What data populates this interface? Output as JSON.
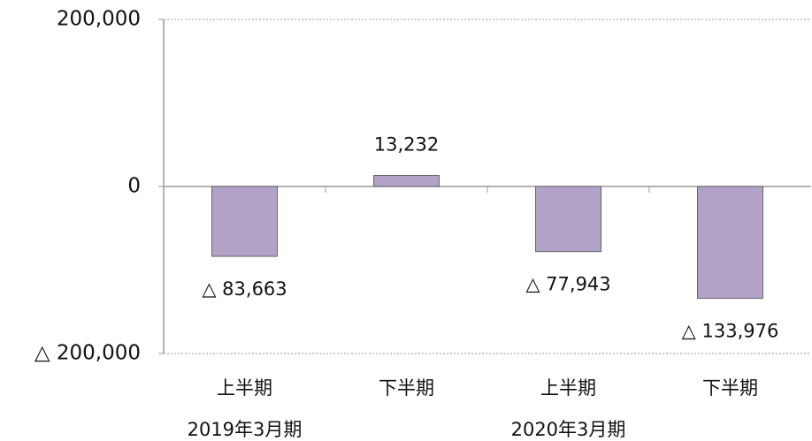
{
  "chart_data": {
    "type": "bar",
    "categories": [
      "上半期",
      "下半期",
      "上半期",
      "下半期"
    ],
    "group_labels": [
      "2019年3月期",
      "2020年3月期"
    ],
    "values": [
      -83663,
      13232,
      -77943,
      -133976
    ],
    "value_labels": [
      "△ 83,663",
      "13,232",
      "△ 77,943",
      "△ 133,976"
    ],
    "color": "#b3a2c7",
    "ylim": [
      -200000,
      200000
    ],
    "yticks": [
      {
        "value": -200000,
        "label": "△ 200,000"
      },
      0,
      {
        "value": 200000,
        "label": "200,000"
      }
    ],
    "grid": true
  }
}
